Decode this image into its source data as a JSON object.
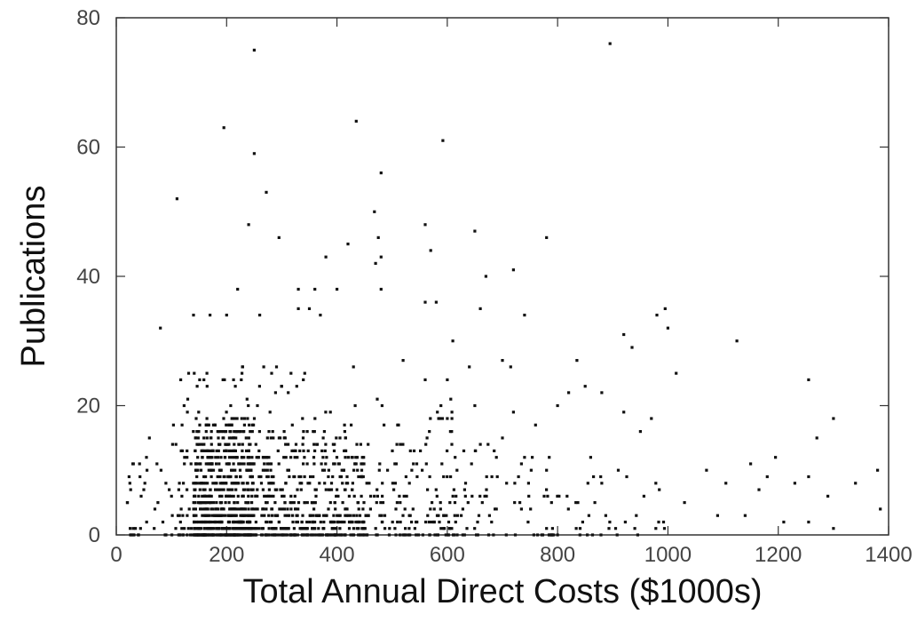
{
  "chart_data": {
    "type": "scatter",
    "title": "",
    "xlabel": "Total Annual Direct Costs ($1000s)",
    "ylabel": "Publications",
    "xlim": [
      0,
      1400
    ],
    "ylim": [
      0,
      80
    ],
    "xticks": [
      0,
      200,
      400,
      600,
      800,
      1000,
      1200,
      1400
    ],
    "yticks": [
      0,
      20,
      40,
      60,
      80
    ],
    "grid": false,
    "series": [
      {
        "points": [
          [
            250,
            75
          ],
          [
            895,
            76
          ],
          [
            195,
            63
          ],
          [
            435,
            64
          ],
          [
            250,
            59
          ],
          [
            592,
            61
          ],
          [
            480,
            56
          ],
          [
            272,
            53
          ],
          [
            110,
            52
          ],
          [
            468,
            50
          ],
          [
            240,
            48
          ],
          [
            295,
            46
          ],
          [
            420,
            45
          ],
          [
            475,
            46
          ],
          [
            560,
            48
          ],
          [
            650,
            47
          ],
          [
            780,
            46
          ],
          [
            480,
            43
          ],
          [
            380,
            43
          ],
          [
            470,
            42
          ],
          [
            570,
            44
          ],
          [
            720,
            41
          ],
          [
            670,
            40
          ],
          [
            220,
            38
          ],
          [
            330,
            38
          ],
          [
            360,
            38
          ],
          [
            400,
            38
          ],
          [
            480,
            38
          ],
          [
            560,
            36
          ],
          [
            580,
            36
          ],
          [
            660,
            35
          ],
          [
            740,
            34
          ],
          [
            980,
            34
          ],
          [
            995,
            35
          ],
          [
            1000,
            32
          ],
          [
            140,
            34
          ],
          [
            170,
            34
          ],
          [
            200,
            34
          ],
          [
            260,
            34
          ],
          [
            330,
            35
          ],
          [
            350,
            35
          ],
          [
            370,
            34
          ],
          [
            80,
            32
          ],
          [
            920,
            31
          ],
          [
            1125,
            30
          ],
          [
            935,
            29
          ],
          [
            1015,
            25
          ],
          [
            1255,
            24
          ],
          [
            610,
            30
          ],
          [
            520,
            27
          ],
          [
            430,
            26
          ],
          [
            700,
            27
          ],
          [
            715,
            26
          ],
          [
            835,
            27
          ],
          [
            600,
            24
          ],
          [
            560,
            24
          ],
          [
            640,
            26
          ],
          [
            850,
            23
          ],
          [
            880,
            22
          ],
          [
            820,
            22
          ],
          [
            800,
            20
          ],
          [
            920,
            19
          ],
          [
            970,
            18
          ],
          [
            950,
            16
          ],
          [
            1300,
            18
          ],
          [
            1270,
            15
          ],
          [
            1195,
            12
          ],
          [
            1150,
            11
          ],
          [
            1380,
            10
          ],
          [
            1255,
            9
          ],
          [
            1070,
            10
          ],
          [
            1105,
            8
          ],
          [
            1230,
            8
          ],
          [
            1290,
            6
          ],
          [
            1340,
            8
          ],
          [
            1165,
            7
          ],
          [
            1180,
            9
          ],
          [
            1030,
            5
          ],
          [
            1090,
            3
          ],
          [
            1140,
            3
          ],
          [
            1210,
            2
          ],
          [
            1255,
            2
          ],
          [
            1385,
            4
          ],
          [
            1300,
            1
          ],
          [
            910,
            10
          ],
          [
            860,
            12
          ],
          [
            880,
            8
          ],
          [
            780,
            10
          ],
          [
            740,
            12
          ],
          [
            700,
            15
          ],
          [
            660,
            14
          ],
          [
            630,
            13
          ],
          [
            600,
            18
          ],
          [
            650,
            20
          ],
          [
            760,
            17
          ],
          [
            720,
            19
          ],
          [
            30,
            11
          ],
          [
            60,
            15
          ],
          [
            20,
            5
          ],
          [
            45,
            6
          ],
          [
            70,
            4
          ],
          [
            90,
            8
          ],
          [
            55,
            2
          ]
        ],
        "clusters": [
          {
            "xmin": 140,
            "xmax": 250,
            "ymin": 0,
            "ymax": 18,
            "count": 650
          },
          {
            "xmin": 250,
            "xmax": 450,
            "ymin": 0,
            "ymax": 16,
            "count": 380
          },
          {
            "xmin": 100,
            "xmax": 350,
            "ymin": 0,
            "ymax": 26,
            "count": 180
          },
          {
            "xmin": 350,
            "xmax": 620,
            "ymin": 0,
            "ymax": 22,
            "count": 150
          },
          {
            "xmin": 450,
            "xmax": 800,
            "ymin": 0,
            "ymax": 14,
            "count": 110
          },
          {
            "xmin": 700,
            "xmax": 1000,
            "ymin": 0,
            "ymax": 10,
            "count": 45
          },
          {
            "xmin": 20,
            "xmax": 140,
            "ymin": 0,
            "ymax": 12,
            "count": 40
          }
        ]
      }
    ]
  }
}
